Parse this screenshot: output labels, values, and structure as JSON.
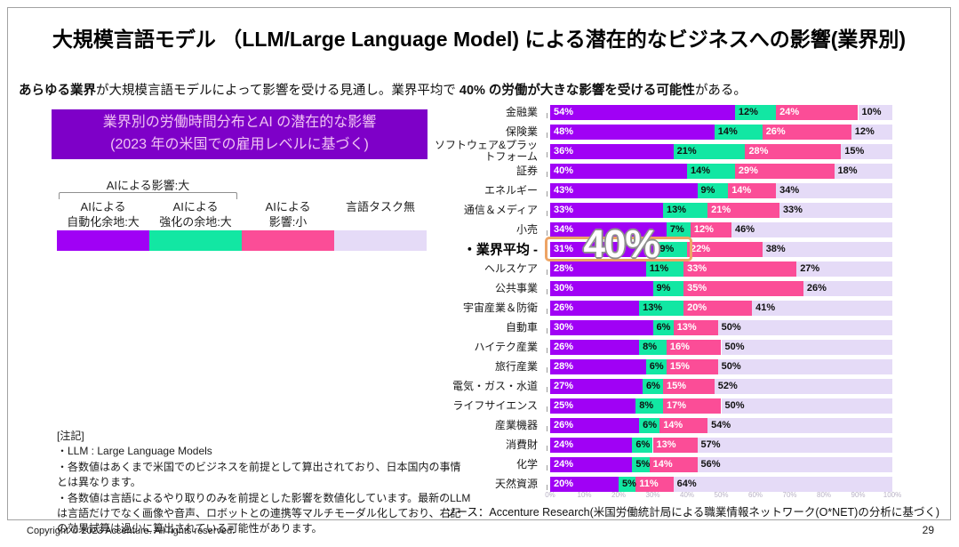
{
  "slide": {
    "title": "大規模言語モデル （LLM/Large Language Model) による潜在的なビジネスへの影響(業界別)",
    "subtitle": {
      "bold1": "あらゆる業界",
      "regular1": "が大規模言語モデルによって影響を受ける見通し。業界平均で ",
      "bold2": "40% の労働が大きな影響を受ける可能性",
      "regular2": "がある。"
    },
    "info_box": {
      "line1": "業界別の労働時間分布とAI の潜在的な影響",
      "line2": "(2023 年の米国での雇用レベルに基づく)"
    },
    "legend": {
      "bracket_label": "AIによる影響:大",
      "items": [
        {
          "label": "AIによる\n自動化余地:大",
          "color": "#a001f5"
        },
        {
          "label": "AIによる\n強化の余地:大",
          "color": "#12e7a3"
        },
        {
          "label": "AIによる\n影響:小",
          "color": "#fb4d97"
        },
        {
          "label": "言語タスク無",
          "color": "#e5dbf7"
        }
      ]
    },
    "notes": [
      "[注記]",
      "・LLM : Large Language Models",
      "・各数値はあくまで米国でのビジネスを前提として算出されており、日本国内の事情とは異なります。",
      "・各数値は言語によるやり取りのみを前提とした影響を数値化しています。最新のLLMは言語だけでなく画像や音声、ロボットとの連携等マルチモーダル化しており、右記の効果試算は過少に算出されている可能性があります。"
    ],
    "source": "ソース：Accenture Research(米国労働統計局による職業情報ネットワーク(O*NET)の分析に基づく)",
    "footer": {
      "copyright": "Copyright © 2023 Accenture. All rights reserved.",
      "page": "29"
    }
  },
  "chart_data": {
    "type": "bar",
    "orientation": "horizontal",
    "stacked": true,
    "xlim": [
      0,
      100
    ],
    "x_ticks": [
      "0%",
      "10%",
      "20%",
      "30%",
      "40%",
      "50%",
      "60%",
      "70%",
      "80%",
      "90%",
      "100%"
    ],
    "categories": [
      "金融業",
      "保険業",
      "ソフトウェア&プラッ\nトフォーム",
      "証券",
      "エネルギー",
      "通信＆メディア",
      "小売",
      "・業界平均 -",
      "ヘルスケア",
      "公共事業",
      "宇宙産業＆防衛",
      "自動車",
      "ハイテク産業",
      "旅行産業",
      "電気・ガス・水道",
      "ライフサイエンス",
      "産業機器",
      "消費財",
      "化学",
      "天然資源"
    ],
    "series": [
      {
        "name": "AIによる自動化余地:大",
        "color": "#a001f5",
        "label_color": "#ffffff",
        "values": [
          54,
          48,
          36,
          40,
          43,
          33,
          34,
          31,
          28,
          30,
          26,
          30,
          26,
          28,
          27,
          25,
          26,
          24,
          24,
          20
        ]
      },
      {
        "name": "AIによる強化の余地:大",
        "color": "#12e7a3",
        "label_color": "#101010",
        "values": [
          12,
          14,
          21,
          14,
          9,
          13,
          7,
          9,
          11,
          9,
          13,
          6,
          8,
          6,
          6,
          8,
          6,
          6,
          5,
          5
        ]
      },
      {
        "name": "AIによる影響:小",
        "color": "#fb4d97",
        "label_color": "#ffffff",
        "values": [
          24,
          26,
          28,
          29,
          14,
          21,
          12,
          22,
          33,
          35,
          20,
          13,
          16,
          15,
          15,
          17,
          14,
          13,
          14,
          11
        ]
      },
      {
        "name": "言語タスク無",
        "color": "#e5dbf7",
        "label_color": "#101010",
        "values": [
          10,
          12,
          15,
          18,
          34,
          33,
          46,
          38,
          27,
          26,
          41,
          50,
          50,
          50,
          52,
          50,
          54,
          57,
          56,
          64
        ]
      }
    ],
    "average_row_index": 7,
    "callout": {
      "text": "40%"
    }
  }
}
